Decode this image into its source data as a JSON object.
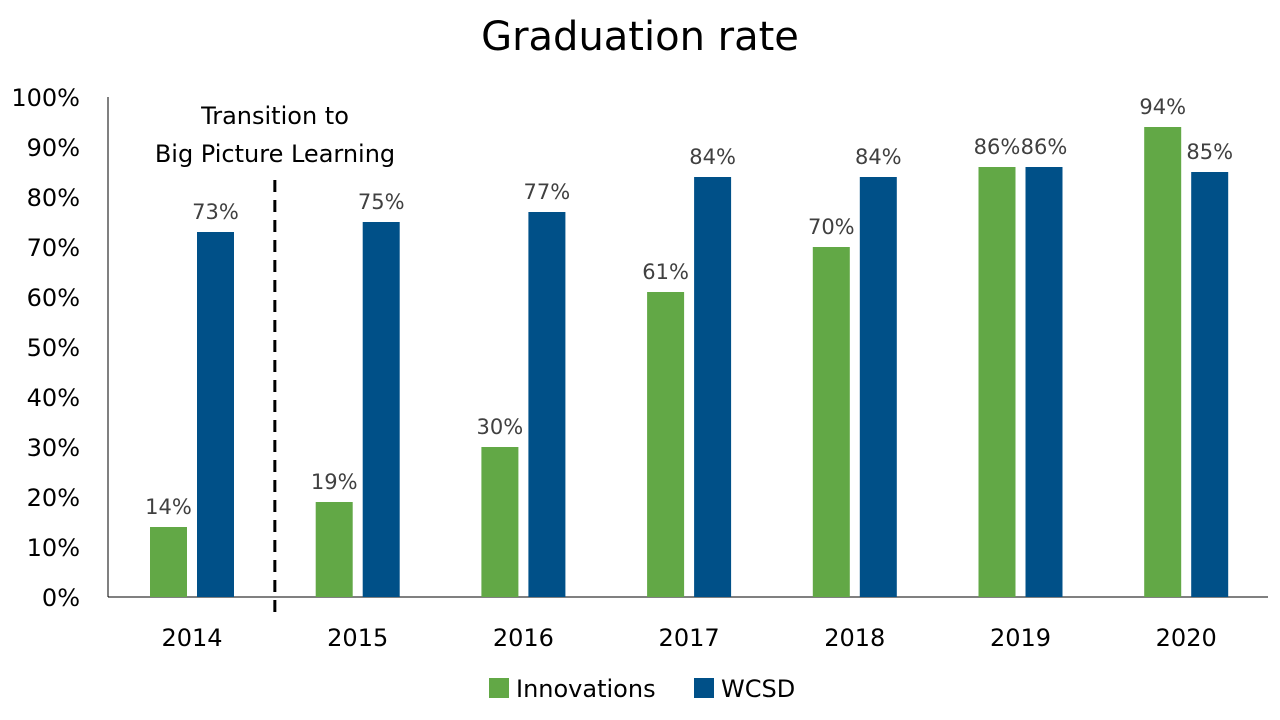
{
  "chart_data": {
    "type": "bar",
    "title": "Graduation rate",
    "xlabel": "",
    "ylabel": "",
    "ylim": [
      0,
      100
    ],
    "ytick_step": 10,
    "ytick_suffix": "%",
    "grid": false,
    "legend_position": "bottom",
    "categories": [
      "2014",
      "2015",
      "2016",
      "2017",
      "2018",
      "2019",
      "2020"
    ],
    "series": [
      {
        "name": "Innovations",
        "color": "#62A846",
        "values": [
          14,
          19,
          30,
          61,
          70,
          86,
          94
        ],
        "labels": [
          "14%",
          "19%",
          "30%",
          "61%",
          "70%",
          "86%",
          "94%"
        ]
      },
      {
        "name": "WCSD",
        "color": "#005088",
        "values": [
          73,
          75,
          77,
          84,
          84,
          86,
          85
        ],
        "labels": [
          "73%",
          "75%",
          "77%",
          "84%",
          "84%",
          "86%",
          "85%"
        ]
      }
    ],
    "annotation": {
      "lines": [
        "Transition to",
        "Big Picture Learning"
      ],
      "marker": "dashed vertical line between 2014 and 2015"
    }
  }
}
